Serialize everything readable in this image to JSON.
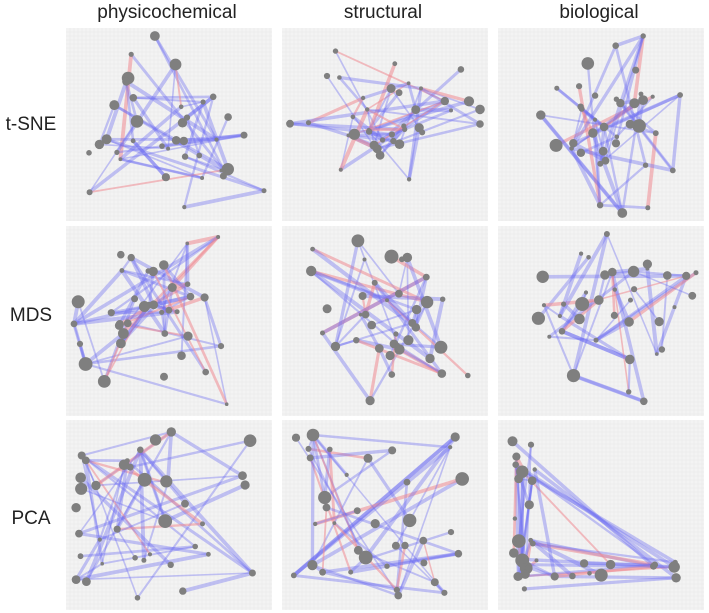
{
  "column_labels": [
    "physicochemical",
    "structural",
    "biological"
  ],
  "row_labels": [
    "t-SNE",
    "MDS",
    "PCA"
  ],
  "colors": {
    "node": "#7f7f7f",
    "edge_blue": "#6b6bf2",
    "edge_red": "#ee8a92",
    "panel_bg": "#f3f3f3",
    "panel_grid": "#e9e9e9"
  }
}
